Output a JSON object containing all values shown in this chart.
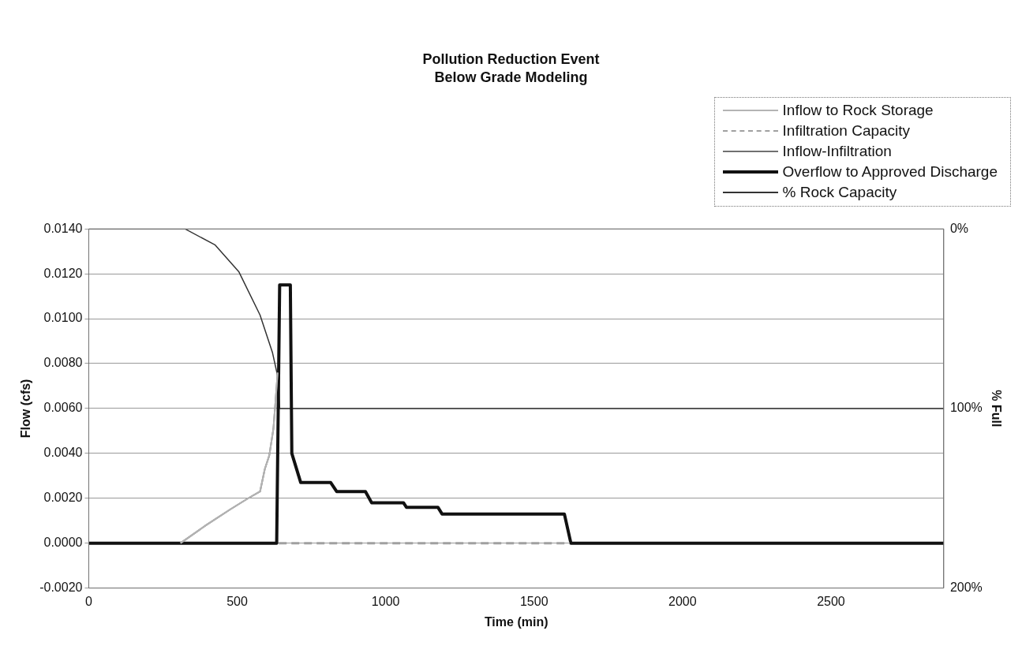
{
  "chart_data": {
    "type": "line",
    "title": "Pollution Reduction Event",
    "subtitle": "Below Grade Modeling",
    "xlabel": "Time (min)",
    "ylabel": "Flow (cfs)",
    "y2label": "% Full",
    "xlim": [
      0,
      2880
    ],
    "xticks": [
      0,
      500,
      1000,
      1500,
      2000,
      2500
    ],
    "ylim": [
      -0.002,
      0.014
    ],
    "yticks": [
      {
        "value": -0.002,
        "label": "-0.0020"
      },
      {
        "value": 0,
        "label": "0.0000"
      },
      {
        "value": 0.002,
        "label": "0.0020"
      },
      {
        "value": 0.004,
        "label": "0.0040"
      },
      {
        "value": 0.006,
        "label": "0.0060"
      },
      {
        "value": 0.008,
        "label": "0.0080"
      },
      {
        "value": 0.01,
        "label": "0.0100"
      },
      {
        "value": 0.012,
        "label": "0.0120"
      },
      {
        "value": 0.014,
        "label": "0.0140"
      }
    ],
    "y2lim": [
      200,
      0
    ],
    "y2ticks": [
      {
        "value": 0,
        "label": "0%"
      },
      {
        "value": 100,
        "label": "100%"
      },
      {
        "value": 200,
        "label": "200%"
      }
    ],
    "grid": "y",
    "legend": "top right",
    "marker": "none",
    "series": [
      {
        "name": "Inflow to Rock Storage",
        "color": "#b4b4b4",
        "x": [
          309,
          395,
          476,
          537,
          577,
          593,
          608,
          622,
          633,
          636
        ],
        "values": [
          0,
          0.0008,
          0.0015,
          0.002,
          0.0023,
          0.0033,
          0.0039,
          0.0051,
          0.007,
          0.0076
        ]
      },
      {
        "name": "Infiltration Capacity",
        "color": "#a0a0a0",
        "line_style": "dashed",
        "x": [
          640,
          1620
        ],
        "values": [
          0,
          0
        ]
      },
      {
        "name": "Inflow-Infiltration",
        "color": "#707070",
        "x": [
          309,
          395,
          476,
          537,
          577,
          593,
          608,
          622,
          633,
          636
        ],
        "values": [
          0,
          0.0008,
          0.0015,
          0.002,
          0.0023,
          0.0033,
          0.0039,
          0.0051,
          0.007,
          0.0076
        ]
      },
      {
        "name": "Overflow to Approved Discharge",
        "color": "#111111",
        "x": [
          0,
          633,
          643,
          679,
          684,
          714,
          815,
          835,
          932,
          953,
          1060,
          1070,
          1176,
          1190,
          1602,
          1624,
          2880
        ],
        "values": [
          0,
          0,
          0.0115,
          0.0115,
          0.004,
          0.0027,
          0.0027,
          0.0023,
          0.0023,
          0.0018,
          0.0018,
          0.0016,
          0.0016,
          0.0013,
          0.0013,
          0,
          0
        ]
      },
      {
        "name": "% Rock Capacity",
        "color": "#333333",
        "axis": "y2",
        "x": [
          0,
          324,
          426,
          506,
          577,
          619,
          639,
          643,
          2880
        ],
        "values": [
          0,
          0,
          9,
          24,
          48,
          69,
          84,
          100,
          100
        ]
      }
    ]
  }
}
